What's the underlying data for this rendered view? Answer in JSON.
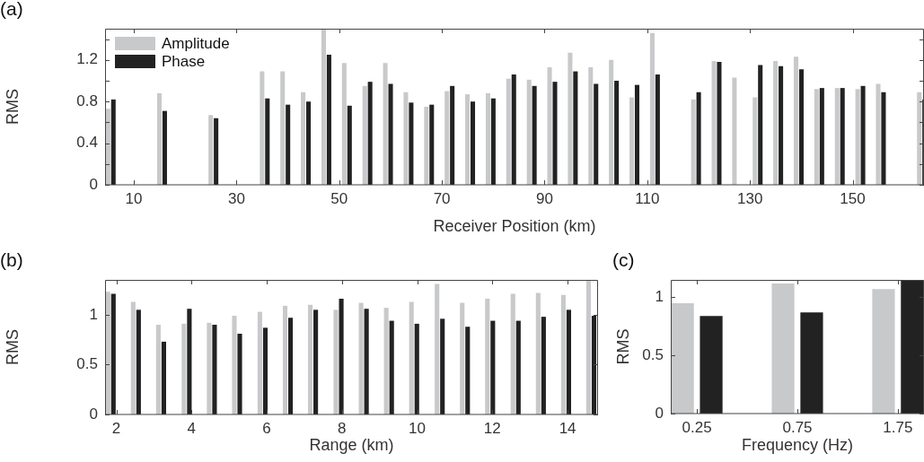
{
  "chart_data": [
    {
      "type": "bar",
      "title": "(a)",
      "xlabel": "Receiver Position (km)",
      "ylabel": "RMS",
      "legend": "top left",
      "x": [
        5.5,
        15.5,
        25.5,
        35.5,
        39.5,
        43.5,
        47.5,
        51.5,
        55.5,
        59.5,
        63.5,
        67.5,
        71.5,
        75.5,
        79.5,
        83.5,
        87.5,
        91.5,
        95.5,
        99.5,
        103.5,
        107.5,
        111.5,
        119.5,
        123.5,
        127.5,
        131.5,
        135.5,
        139.5,
        143.5,
        147.5,
        151.5,
        155.5,
        163.5
      ],
      "series": [
        {
          "name": "Amplitude",
          "color": "#c8c9cb",
          "values": [
            0.73,
            0.88,
            0.67,
            1.09,
            1.09,
            0.89,
            1.5,
            1.17,
            0.95,
            1.17,
            0.89,
            0.75,
            0.9,
            0.87,
            0.88,
            1.02,
            1.01,
            1.13,
            1.27,
            1.13,
            1.2,
            0.84,
            1.46,
            0.82,
            1.19,
            1.03,
            0.84,
            1.19,
            1.23,
            0.92,
            0.93,
            0.92,
            0.97,
            0.89
          ]
        },
        {
          "name": "Phase",
          "color": "#222222",
          "values": [
            0.82,
            0.71,
            0.64,
            0.83,
            0.77,
            0.8,
            1.25,
            0.76,
            0.99,
            0.97,
            0.79,
            0.77,
            0.95,
            0.8,
            0.83,
            1.06,
            0.95,
            0.99,
            1.09,
            0.97,
            1.0,
            0.96,
            1.06,
            0.89,
            1.18,
            null,
            1.15,
            1.14,
            1.11,
            0.93,
            0.93,
            0.95,
            0.89,
            0.82
          ]
        }
      ],
      "xlim": [
        4.4,
        163.9
      ],
      "xticks": [
        10,
        30,
        50,
        70,
        90,
        110,
        130,
        150
      ],
      "ylim": [
        0,
        1.5
      ],
      "yticks": [
        0,
        {
          "value": 0.2,
          "label": null
        },
        0.4,
        {
          "value": 0.6,
          "label": null
        },
        0.8,
        {
          "value": 1.0,
          "label": null
        },
        1.2,
        {
          "value": 1.4,
          "label": null
        }
      ]
    },
    {
      "type": "bar",
      "title": "(b)",
      "xlabel": "Range (km)",
      "ylabel": "RMS",
      "x": [
        1.85,
        2.52,
        3.19,
        3.87,
        4.54,
        5.21,
        5.89,
        6.56,
        7.23,
        7.91,
        8.58,
        9.25,
        9.92,
        10.6,
        11.27,
        11.94,
        12.62,
        13.29,
        13.96,
        14.63
      ],
      "series": [
        {
          "color": "#c8c9cb",
          "values": [
            1.23,
            1.13,
            0.9,
            0.91,
            0.92,
            0.99,
            1.03,
            1.09,
            1.1,
            1.05,
            1.12,
            1.07,
            1.13,
            1.31,
            1.12,
            1.16,
            1.21,
            1.22,
            1.2,
            1.34
          ]
        },
        {
          "color": "#222222",
          "values": [
            1.21,
            1.05,
            0.73,
            1.06,
            0.9,
            0.81,
            0.87,
            0.97,
            1.05,
            1.16,
            1.06,
            0.94,
            0.91,
            0.96,
            0.88,
            0.94,
            0.94,
            0.98,
            1.05,
            0.99
          ]
        }
      ],
      "xlim": [
        1.7,
        14.81
      ],
      "xticks": [
        2,
        4,
        6,
        8,
        10,
        12,
        14
      ],
      "ylim": [
        0,
        1.35
      ],
      "yticks": [
        0,
        0.5,
        1
      ]
    },
    {
      "type": "bar",
      "title": "(c)",
      "xlabel": "Frequency (Hz)",
      "ylabel": "RMS",
      "categories": [
        "0.25",
        "0.75",
        "1.75"
      ],
      "series": [
        {
          "color": "#c8c9cb",
          "values": [
            0.95,
            1.12,
            1.07
          ]
        },
        {
          "color": "#222222",
          "values": [
            0.84,
            0.87,
            1.15
          ]
        }
      ],
      "ylim": [
        0,
        1.15
      ],
      "yticks": [
        0,
        0.5,
        1
      ]
    }
  ]
}
